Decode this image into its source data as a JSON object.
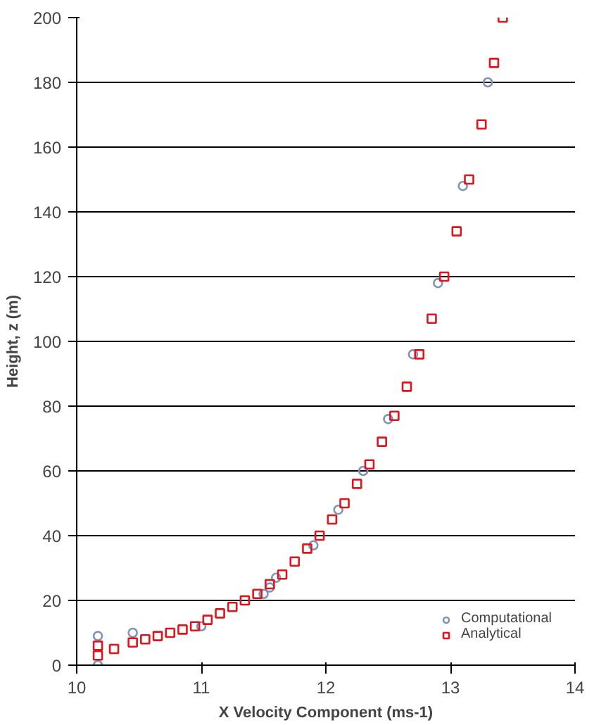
{
  "chart_data": {
    "type": "scatter",
    "xlabel": "X Velocity Component (ms-1)",
    "ylabel": "Height, z (m)",
    "xlim": [
      10,
      14
    ],
    "xticks": [
      10,
      11,
      12,
      13,
      14
    ],
    "ylim": [
      0,
      200
    ],
    "yticks": [
      0,
      20,
      40,
      60,
      80,
      100,
      120,
      140,
      160,
      180,
      200
    ],
    "grid": "y",
    "legend": "bottom right",
    "series": [
      {
        "name": "Computational",
        "color": "#7f93b5",
        "marker": "circle",
        "x": [
          10.17,
          10.17,
          10.45,
          11.0,
          11.5,
          11.55,
          11.6,
          11.9,
          12.1,
          12.3,
          12.5,
          12.7,
          12.9,
          13.1,
          13.3
        ],
        "values": [
          0,
          9,
          10,
          12,
          22,
          24,
          27,
          37,
          48,
          60,
          76,
          96,
          118,
          148,
          180
        ]
      },
      {
        "name": "Analytical",
        "color": "#e0141c",
        "marker": "square",
        "x": [
          10.17,
          10.17,
          10.3,
          10.45,
          10.55,
          10.65,
          10.75,
          10.85,
          10.95,
          11.05,
          11.15,
          11.25,
          11.35,
          11.45,
          11.55,
          11.65,
          11.75,
          11.85,
          11.95,
          12.05,
          12.15,
          12.25,
          12.35,
          12.45,
          12.55,
          12.65,
          12.75,
          12.85,
          12.95,
          13.05,
          13.15,
          13.25,
          13.35,
          13.42
        ],
        "values": [
          3,
          6,
          5,
          7,
          8,
          9,
          10,
          11,
          12,
          14,
          16,
          18,
          20,
          22,
          25,
          28,
          32,
          36,
          40,
          45,
          50,
          56,
          62,
          69,
          77,
          86,
          96,
          107,
          120,
          134,
          150,
          167,
          186,
          200
        ]
      }
    ]
  }
}
